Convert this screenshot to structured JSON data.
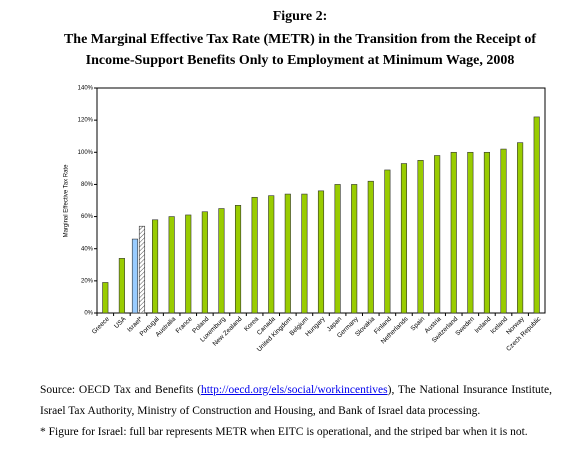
{
  "chart_data": {
    "type": "bar",
    "title_lines": [
      "Figure 2:",
      "The Marginal Effective Tax Rate (METR) in the Transition from the Receipt of",
      "Income-Support Benefits Only to Employment at Minimum Wage, 2008"
    ],
    "y_label": "Marginal Effective Tax Rate",
    "categories": [
      "Greece",
      "USA",
      "Israel*",
      "Portugal",
      "Australia",
      "France",
      "Poland",
      "Luxemburg",
      "New Zealand",
      "Korea",
      "Canada",
      "United Kingdom",
      "Belgium",
      "Hungary",
      "Japan",
      "Germany",
      "Slovakia",
      "Finland",
      "Netherlands",
      "Spain",
      "Austria",
      "Switzerland",
      "Sweden",
      "Ireland",
      "Iceland",
      "Norway",
      "Czech Republic"
    ],
    "series": [
      {
        "colors": [
          "#99cc00",
          "#99cc00",
          "#99ccff",
          "#99cc00",
          "#99cc00",
          "#99cc00",
          "#99cc00",
          "#99cc00",
          "#99cc00",
          "#99cc00",
          "#99cc00",
          "#99cc00",
          "#99cc00",
          "#99cc00",
          "#99cc00",
          "#99cc00",
          "#99cc00",
          "#99cc00",
          "#99cc00",
          "#99cc00",
          "#99cc00",
          "#99cc00",
          "#99cc00",
          "#99cc00",
          "#99cc00",
          "#99cc00",
          "#99cc00"
        ],
        "values": [
          19,
          34,
          46,
          58,
          60,
          61,
          63,
          65,
          67,
          72,
          73,
          74,
          74,
          76,
          80,
          80,
          82,
          89,
          93,
          95,
          98,
          100,
          100,
          100,
          102,
          106,
          122
        ]
      },
      {
        "color": "#ffffff",
        "hatch": true,
        "values": [
          null,
          null,
          54,
          null,
          null,
          null,
          null,
          null,
          null,
          null,
          null,
          null,
          null,
          null,
          null,
          null,
          null,
          null,
          null,
          null,
          null,
          null,
          null,
          null,
          null,
          null,
          null
        ]
      }
    ],
    "ylim": [
      0,
      140
    ],
    "yticks": [
      {
        "value": 0,
        "label": "0%"
      },
      {
        "value": 20,
        "label": "20%"
      },
      {
        "value": 40,
        "label": "40%"
      },
      {
        "value": 60,
        "label": "60%"
      },
      {
        "value": 80,
        "label": "80%"
      },
      {
        "value": 100,
        "label": "100%"
      },
      {
        "value": 120,
        "label": "120%"
      },
      {
        "value": 140,
        "label": "140%"
      }
    ],
    "grid": false,
    "source": {
      "prefix": "Source: OECD Tax and Benefits (",
      "link": "http://oecd.org/els/social/workincentives",
      "suffix": "), The National Insurance Institute, Israel Tax Authority, Ministry of Construction and Housing, and Bank of Israel data processing."
    },
    "footnote": "* Figure for Israel: full bar represents METR when EITC is operational, and the striped bar when it is not."
  }
}
